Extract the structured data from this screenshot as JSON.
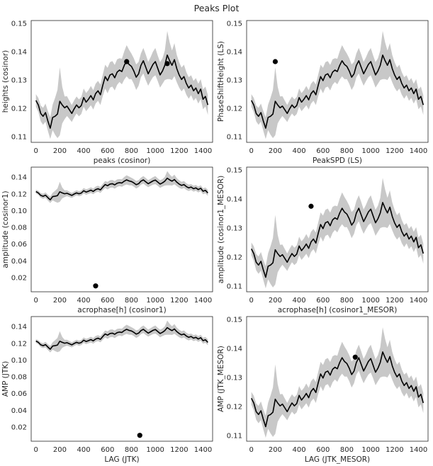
{
  "figure": {
    "title": "Peaks Plot"
  },
  "chart_data": [
    {
      "type": "line",
      "xlabel": "peaks (cosinor)",
      "ylabel": "heights (cosinor)",
      "xlim": [
        -40,
        1480
      ],
      "ylim": [
        0.108,
        0.151
      ],
      "xticks": [
        0,
        200,
        400,
        600,
        800,
        1000,
        1200,
        1400
      ],
      "yticks": [
        0.11,
        0.12,
        0.13,
        0.14,
        0.15
      ],
      "xtick_labels": [
        "0",
        "200",
        "400",
        "600",
        "800",
        "1000",
        "1200",
        "1400"
      ],
      "ytick_labels": [
        "0.11",
        "0.12",
        "0.13",
        "0.14",
        "0.15"
      ],
      "points": [
        {
          "x": 760,
          "y": 0.1365
        },
        {
          "x": 1100,
          "y": 0.1358
        }
      ],
      "grid": false
    },
    {
      "type": "line",
      "xlabel": "PeakSPD (LS)",
      "ylabel": "PhaseShiftHeight (LS)",
      "xlim": [
        -40,
        1480
      ],
      "ylim": [
        0.108,
        0.151
      ],
      "xticks": [
        0,
        200,
        400,
        600,
        800,
        1000,
        1200,
        1400
      ],
      "yticks": [
        0.11,
        0.12,
        0.13,
        0.14,
        0.15
      ],
      "xtick_labels": [
        "0",
        "200",
        "400",
        "600",
        "800",
        "1000",
        "1200",
        "1400"
      ],
      "ytick_labels": [
        "0.11",
        "0.12",
        "0.13",
        "0.14",
        "0.15"
      ],
      "points": [
        {
          "x": 200,
          "y": 0.1365
        }
      ],
      "grid": false
    },
    {
      "type": "line",
      "xlabel": "acrophase[h] (cosinor1)",
      "ylabel": "amplitude (cosinor1)",
      "xlim": [
        -40,
        1480
      ],
      "ylim": [
        0.003,
        0.152
      ],
      "xticks": [
        0,
        200,
        400,
        600,
        800,
        1000,
        1200,
        1400
      ],
      "yticks": [
        0.02,
        0.04,
        0.06,
        0.08,
        0.1,
        0.12,
        0.14
      ],
      "xtick_labels": [
        "0",
        "200",
        "400",
        "600",
        "800",
        "1000",
        "1200",
        "1400"
      ],
      "ytick_labels": [
        "0.02",
        "0.04",
        "0.06",
        "0.08",
        "0.10",
        "0.12",
        "0.14"
      ],
      "points": [
        {
          "x": 500,
          "y": 0.01
        }
      ],
      "grid": false
    },
    {
      "type": "line",
      "xlabel": "acrophase[h] (cosinor1_MESOR)",
      "ylabel": "amplitude (cosinor1_MESOR)",
      "xlim": [
        -40,
        1480
      ],
      "ylim": [
        0.108,
        0.151
      ],
      "xticks": [
        0,
        200,
        400,
        600,
        800,
        1000,
        1200,
        1400
      ],
      "yticks": [
        0.11,
        0.12,
        0.13,
        0.14,
        0.15
      ],
      "xtick_labels": [
        "0",
        "200",
        "400",
        "600",
        "800",
        "1000",
        "1200",
        "1400"
      ],
      "ytick_labels": [
        "0.11",
        "0.12",
        "0.13",
        "0.14",
        "0.15"
      ],
      "points": [
        {
          "x": 500,
          "y": 0.1375
        }
      ],
      "grid": false
    },
    {
      "type": "line",
      "xlabel": "LAG (JTK)",
      "ylabel": "AMP (JTK)",
      "xlim": [
        -40,
        1480
      ],
      "ylim": [
        0.003,
        0.152
      ],
      "xticks": [
        0,
        200,
        400,
        600,
        800,
        1000,
        1200,
        1400
      ],
      "yticks": [
        0.02,
        0.04,
        0.06,
        0.08,
        0.1,
        0.12,
        0.14
      ],
      "xtick_labels": [
        "0",
        "200",
        "400",
        "600",
        "800",
        "1000",
        "1200",
        "1400"
      ],
      "ytick_labels": [
        "0.02",
        "0.04",
        "0.06",
        "0.08",
        "0.10",
        "0.12",
        "0.14"
      ],
      "points": [
        {
          "x": 870,
          "y": 0.01
        }
      ],
      "grid": false
    },
    {
      "type": "line",
      "xlabel": "LAG (JTK_MESOR)",
      "ylabel": "AMP (JTK_MESOR)",
      "xlim": [
        -40,
        1480
      ],
      "ylim": [
        0.108,
        0.151
      ],
      "xticks": [
        0,
        200,
        400,
        600,
        800,
        1000,
        1200,
        1400
      ],
      "yticks": [
        0.11,
        0.12,
        0.13,
        0.14,
        0.15
      ],
      "xtick_labels": [
        "0",
        "200",
        "400",
        "600",
        "800",
        "1000",
        "1200",
        "1400"
      ],
      "ytick_labels": [
        "0.11",
        "0.12",
        "0.13",
        "0.14",
        "0.15"
      ],
      "points": [
        {
          "x": 870,
          "y": 0.137
        }
      ],
      "grid": false
    }
  ],
  "mean_series": {
    "x": [
      0,
      20,
      40,
      60,
      80,
      100,
      120,
      140,
      160,
      180,
      200,
      220,
      240,
      260,
      280,
      300,
      320,
      340,
      360,
      380,
      400,
      420,
      440,
      460,
      480,
      500,
      520,
      540,
      560,
      580,
      600,
      620,
      640,
      660,
      680,
      700,
      720,
      740,
      760,
      780,
      800,
      820,
      840,
      860,
      880,
      900,
      920,
      940,
      960,
      980,
      1000,
      1020,
      1040,
      1060,
      1080,
      1100,
      1120,
      1140,
      1160,
      1180,
      1200,
      1220,
      1240,
      1260,
      1280,
      1300,
      1320,
      1340,
      1360,
      1380,
      1400,
      1420,
      1440
    ],
    "y": [
      0.1228,
      0.1212,
      0.1182,
      0.1172,
      0.1185,
      0.1155,
      0.113,
      0.1168,
      0.1172,
      0.118,
      0.1225,
      0.1212,
      0.1202,
      0.1208,
      0.1195,
      0.1182,
      0.1198,
      0.1212,
      0.1202,
      0.121,
      0.1238,
      0.1222,
      0.1232,
      0.1245,
      0.123,
      0.1252,
      0.1262,
      0.1248,
      0.1282,
      0.1312,
      0.1298,
      0.1318,
      0.1322,
      0.1308,
      0.1328,
      0.1335,
      0.133,
      0.1352,
      0.1368,
      0.1355,
      0.1348,
      0.1332,
      0.131,
      0.1322,
      0.1352,
      0.1368,
      0.1345,
      0.1322,
      0.1338,
      0.1355,
      0.1365,
      0.1342,
      0.1318,
      0.1332,
      0.1352,
      0.1388,
      0.1368,
      0.1352,
      0.1372,
      0.134,
      0.1318,
      0.1302,
      0.1312,
      0.1288,
      0.1272,
      0.1282,
      0.1262,
      0.1272,
      0.1252,
      0.1268,
      0.1232,
      0.1242,
      0.1212
    ]
  },
  "band_halfwidth": [
    0.0022,
    0.0025,
    0.0028,
    0.003,
    0.0032,
    0.0035,
    0.0038,
    0.0045,
    0.0065,
    0.0085,
    0.012,
    0.0065,
    0.004,
    0.0035,
    0.0032,
    0.003,
    0.003,
    0.003,
    0.003,
    0.003,
    0.0032,
    0.0032,
    0.0032,
    0.0034,
    0.0034,
    0.0035,
    0.0035,
    0.0036,
    0.0038,
    0.0042,
    0.0045,
    0.0045,
    0.0045,
    0.0045,
    0.0045,
    0.0042,
    0.0045,
    0.005,
    0.0055,
    0.0052,
    0.0045,
    0.0045,
    0.0045,
    0.0042,
    0.0042,
    0.0045,
    0.0045,
    0.0042,
    0.0042,
    0.0045,
    0.0048,
    0.0045,
    0.0045,
    0.0045,
    0.0052,
    0.0085,
    0.0065,
    0.0052,
    0.0058,
    0.0048,
    0.0045,
    0.0042,
    0.0042,
    0.004,
    0.0038,
    0.0035,
    0.0035,
    0.0035,
    0.0035,
    0.0035,
    0.0035,
    0.0035,
    0.0035
  ],
  "colors": {
    "line": "#000000",
    "band": "#c8c8c8",
    "point": "#000000",
    "axes": "#262626"
  }
}
